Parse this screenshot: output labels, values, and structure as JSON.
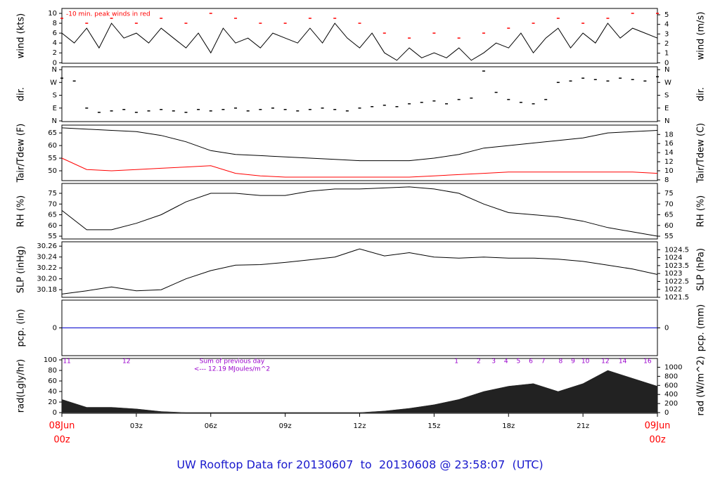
{
  "chart_data": [
    {
      "type": "line",
      "ylabel": "wind (kts)",
      "y2label": "wind (m/s)",
      "note": "-10 min. peak winds in red",
      "xlim": [
        0,
        24
      ],
      "x": [
        0,
        0.5,
        1,
        1.5,
        2,
        2.5,
        3,
        3.5,
        4,
        4.5,
        5,
        5.5,
        6,
        6.5,
        7,
        7.5,
        8,
        8.5,
        9,
        9.5,
        10,
        10.5,
        11,
        11.5,
        12,
        12.5,
        13,
        13.5,
        14,
        14.5,
        15,
        15.5,
        16,
        16.5,
        17,
        17.5,
        18,
        18.5,
        19,
        19.5,
        20,
        20.5,
        21,
        21.5,
        22,
        22.5,
        23,
        23.5,
        24
      ],
      "ylim": [
        -0.1,
        11
      ],
      "yticks": [
        0,
        2,
        4,
        6,
        8,
        10
      ],
      "y2lim": [
        -0.05,
        5.66
      ],
      "y2ticks": [
        0,
        1,
        2,
        3,
        4,
        5
      ],
      "series": [
        {
          "style": "line",
          "color": "#000000",
          "values": [
            6,
            4,
            7,
            3,
            8,
            5,
            6,
            4,
            7,
            5,
            3,
            6,
            2,
            7,
            4,
            5,
            3,
            6,
            5,
            4,
            7,
            4,
            8,
            5,
            3,
            6,
            2,
            0.5,
            3,
            1,
            2,
            1,
            3,
            0.5,
            2,
            4,
            3,
            6,
            2,
            5,
            7,
            3,
            6,
            4,
            8,
            5,
            7,
            6,
            5
          ]
        },
        {
          "style": "points",
          "color": "#ff0000",
          "x": [
            0,
            1,
            2,
            3,
            4,
            5,
            6,
            7,
            8,
            9,
            10,
            11,
            12,
            13,
            14,
            15,
            16,
            17,
            18,
            19,
            20,
            21,
            22,
            23,
            24
          ],
          "values": [
            9,
            8,
            9,
            8,
            9,
            8,
            10,
            9,
            8,
            8,
            9,
            9,
            8,
            6,
            5,
            6,
            5,
            6,
            7,
            8,
            9,
            8,
            9,
            10,
            10
          ]
        }
      ]
    },
    {
      "type": "scatter",
      "ylabel": "dir.",
      "y2label": "dir.",
      "xlim": [
        0,
        24
      ],
      "x": [
        0,
        0.5,
        1,
        1.5,
        2,
        2.5,
        3,
        3.5,
        4,
        4.5,
        5,
        5.5,
        6,
        6.5,
        7,
        7.5,
        8,
        8.5,
        9,
        9.5,
        10,
        10.5,
        11,
        11.5,
        12,
        12.5,
        13,
        13.5,
        14,
        14.5,
        15,
        15.5,
        16,
        16.5,
        17,
        17.5,
        18,
        18.5,
        19,
        19.5,
        20,
        20.5,
        21,
        21.5,
        22,
        22.5,
        23,
        23.5,
        24
      ],
      "ylim": [
        -5,
        380
      ],
      "yticks": [
        {
          "value": 0,
          "label": "N"
        },
        {
          "value": 90,
          "label": "E"
        },
        {
          "value": 180,
          "label": "S"
        },
        {
          "value": 270,
          "label": "W"
        },
        {
          "value": 360,
          "label": "N"
        }
      ],
      "y2lim": [
        -5,
        380
      ],
      "y2ticks": [
        {
          "value": 0,
          "label": "N"
        },
        {
          "value": 90,
          "label": "E"
        },
        {
          "value": 180,
          "label": "S"
        },
        {
          "value": 270,
          "label": "W"
        },
        {
          "value": 360,
          "label": "N"
        }
      ],
      "series": [
        {
          "style": "points",
          "color": "#000000",
          "values": [
            300,
            280,
            90,
            60,
            70,
            80,
            60,
            70,
            80,
            70,
            60,
            80,
            70,
            80,
            90,
            70,
            80,
            90,
            80,
            70,
            80,
            90,
            80,
            70,
            90,
            100,
            110,
            100,
            120,
            130,
            140,
            120,
            150,
            160,
            350,
            200,
            150,
            130,
            120,
            150,
            270,
            280,
            300,
            290,
            280,
            300,
            290,
            280,
            310
          ]
        }
      ]
    },
    {
      "type": "line",
      "ylabel": "Tair/Tdew (F)",
      "y2label": "Tair/Tdew (C)",
      "xlim": [
        0,
        24
      ],
      "x": [
        0,
        1,
        2,
        3,
        4,
        5,
        6,
        7,
        8,
        9,
        10,
        11,
        12,
        13,
        14,
        15,
        16,
        17,
        18,
        19,
        20,
        21,
        22,
        23,
        24
      ],
      "ylim": [
        46.1,
        68.1
      ],
      "yticks": [
        50,
        55,
        60,
        65
      ],
      "y2lim": [
        7.83,
        20.06
      ],
      "y2ticks": [
        8,
        10,
        12,
        14,
        16,
        18
      ],
      "series": [
        {
          "style": "line",
          "color": "#000000",
          "values": [
            67,
            66.5,
            66,
            65.5,
            64,
            61.5,
            58,
            56.5,
            56,
            55.5,
            55,
            54.5,
            54,
            54,
            54,
            55,
            56.5,
            59,
            60,
            61,
            62,
            63,
            65,
            65.5,
            66
          ]
        },
        {
          "style": "line",
          "color": "#ff0000",
          "values": [
            55,
            50.5,
            50,
            50.5,
            51,
            51.5,
            52,
            49,
            48,
            47.5,
            47.5,
            47.5,
            47.5,
            47.5,
            47.5,
            48,
            48.5,
            49,
            49.5,
            49.5,
            49.5,
            49.5,
            49.5,
            49.5,
            49
          ]
        }
      ]
    },
    {
      "type": "line",
      "ylabel": "RH (%)",
      "y2label": "RH (%)",
      "xlim": [
        0,
        24
      ],
      "x": [
        0,
        1,
        2,
        3,
        4,
        5,
        6,
        7,
        8,
        9,
        10,
        11,
        12,
        13,
        14,
        15,
        16,
        17,
        18,
        19,
        20,
        21,
        22,
        23,
        24
      ],
      "ylim": [
        53.7,
        79.6
      ],
      "yticks": [
        55,
        60,
        65,
        70,
        75
      ],
      "y2lim": [
        53.7,
        79.6
      ],
      "y2ticks": [
        55,
        60,
        65,
        70,
        75
      ],
      "series": [
        {
          "style": "line",
          "color": "#000000",
          "values": [
            67,
            58,
            58,
            61,
            65,
            71,
            75,
            75,
            74,
            74,
            76,
            77,
            77,
            77.5,
            78,
            77,
            75,
            70,
            66,
            65,
            64,
            62,
            59,
            57,
            55
          ]
        }
      ]
    },
    {
      "type": "line",
      "ylabel": "SLP (inHg)",
      "y2label": "SLP (hPa)",
      "xlim": [
        0,
        24
      ],
      "x": [
        0,
        1,
        2,
        3,
        4,
        5,
        6,
        7,
        8,
        9,
        10,
        11,
        12,
        13,
        14,
        15,
        16,
        17,
        18,
        19,
        20,
        21,
        22,
        23,
        24
      ],
      "ylim": [
        30.166,
        30.268
      ],
      "yticks": [
        30.18,
        {
          "value": 30.2,
          "label": "30.20"
        },
        30.22,
        30.24,
        30.26
      ],
      "y2lim": [
        1021.5,
        1025.0
      ],
      "y2ticks": [
        1021.5,
        1022,
        1022.5,
        1023,
        1023.5,
        1024,
        1024.5
      ],
      "series": [
        {
          "style": "line",
          "color": "#000000",
          "values": [
            30.172,
            30.178,
            30.185,
            30.178,
            30.18,
            30.2,
            30.215,
            30.225,
            30.226,
            30.23,
            30.235,
            30.24,
            30.255,
            30.242,
            30.248,
            30.24,
            30.238,
            30.24,
            30.238,
            30.238,
            30.236,
            30.232,
            30.225,
            30.218,
            30.208
          ]
        }
      ]
    },
    {
      "type": "line",
      "ylabel": "pcp. (in)",
      "y2label": "pcp. (mm)",
      "xlim": [
        0,
        24
      ],
      "x": [
        0,
        24
      ],
      "ylim": [
        -1,
        1
      ],
      "yticks": [
        0
      ],
      "y2lim": [
        -1,
        1
      ],
      "y2ticks": [
        0
      ],
      "series": [
        {
          "style": "line",
          "color": "#0000cc",
          "values": [
            0,
            0
          ]
        }
      ]
    },
    {
      "type": "area",
      "ylabel": "rad(Lgly/hr)",
      "y2label": "rad (W/m^2)",
      "notes": [
        "Sum of previous day",
        "<--- 12.19 MJoules/m^2"
      ],
      "hour_marks": [
        {
          "value": 0.2,
          "label": "11"
        },
        {
          "value": 2.6,
          "label": "12"
        },
        {
          "value": 15.9,
          "label": "1"
        },
        {
          "value": 16.8,
          "label": "2"
        },
        {
          "value": 17.4,
          "label": "3"
        },
        {
          "value": 17.9,
          "label": "4"
        },
        {
          "value": 18.4,
          "label": "5"
        },
        {
          "value": 18.9,
          "label": "6"
        },
        {
          "value": 19.4,
          "label": "7"
        },
        {
          "value": 20.1,
          "label": "8"
        },
        {
          "value": 20.6,
          "label": "9"
        },
        {
          "value": 21.1,
          "label": "10"
        },
        {
          "value": 21.9,
          "label": "12"
        },
        {
          "value": 22.6,
          "label": "14"
        },
        {
          "value": 23.6,
          "label": "16"
        }
      ],
      "xlim": [
        0,
        24
      ],
      "x": [
        0,
        1,
        2,
        3,
        4,
        5,
        6,
        7,
        8,
        9,
        10,
        11,
        12,
        13,
        14,
        15,
        16,
        17,
        18,
        19,
        20,
        21,
        22,
        23,
        24
      ],
      "xticks": [
        {
          "value": 0,
          "label": "00z"
        },
        {
          "value": 3,
          "label": "03z"
        },
        {
          "value": 6,
          "label": "06z"
        },
        {
          "value": 9,
          "label": "09z"
        },
        {
          "value": 12,
          "label": "12z"
        },
        {
          "value": 15,
          "label": "15z"
        },
        {
          "value": 18,
          "label": "18z"
        },
        {
          "value": 21,
          "label": "21z"
        },
        {
          "value": 24,
          "label": "00z"
        }
      ],
      "x_dates": [
        {
          "value": 0,
          "label": "08Jun"
        },
        {
          "value": 24,
          "label": "09Jun"
        }
      ],
      "ylim": [
        -1.3,
        102.7
      ],
      "yticks": [
        0,
        20,
        40,
        60,
        80,
        100
      ],
      "y2lim": [
        -15,
        1194
      ],
      "y2ticks": [
        0,
        200,
        400,
        600,
        800,
        1000
      ],
      "series": [
        {
          "style": "area",
          "color": "#222222",
          "values": [
            25,
            10,
            10,
            7,
            2,
            0,
            0,
            0,
            0,
            0,
            0,
            0,
            0,
            3,
            8,
            15,
            25,
            40,
            50,
            55,
            40,
            55,
            80,
            65,
            50
          ]
        }
      ]
    }
  ],
  "footer": "UW Rooftop Data for 20130607  to  20130608 @ 23:58:07  (UTC)"
}
